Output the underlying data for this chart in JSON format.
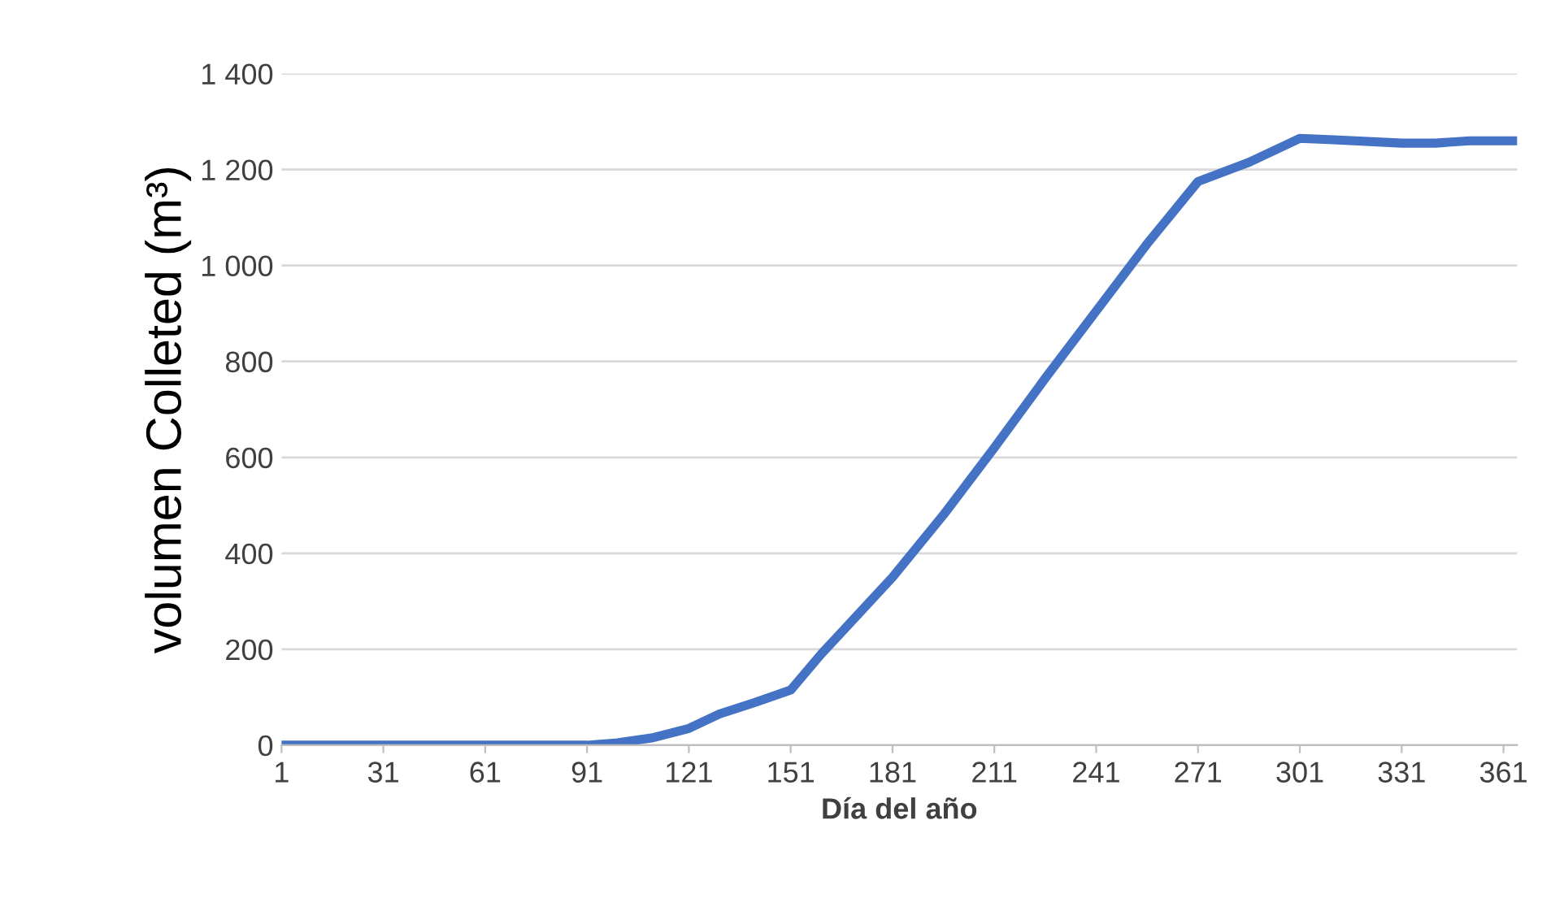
{
  "chart_data": {
    "type": "line",
    "xlabel": "Día del año",
    "ylabel": "volumen Colleted (m³)",
    "x": [
      1,
      91,
      100,
      110,
      121,
      130,
      140,
      151,
      160,
      181,
      196,
      211,
      226,
      241,
      256,
      271,
      286,
      301,
      311,
      331,
      341,
      351,
      365
    ],
    "series": [
      {
        "color": "#4472c4",
        "values": [
          0,
          0,
          5,
          15,
          35,
          65,
          88,
          115,
          190,
          350,
          480,
          620,
          765,
          905,
          1045,
          1175,
          1215,
          1265,
          1262,
          1255,
          1255,
          1260,
          1260
        ]
      }
    ],
    "xlim": [
      1,
      365
    ],
    "xticks": [
      1,
      31,
      61,
      91,
      121,
      151,
      181,
      211,
      241,
      271,
      301,
      331,
      361
    ],
    "ylim": [
      0,
      1400
    ],
    "yticks": [
      0,
      200,
      400,
      600,
      800,
      {
        "value": 1000,
        "label": "1 000"
      },
      {
        "value": 1200,
        "label": "1 200"
      },
      {
        "value": 1400,
        "label": "1 400"
      }
    ],
    "grid": "y",
    "marker": "none",
    "line_style": "solid"
  }
}
